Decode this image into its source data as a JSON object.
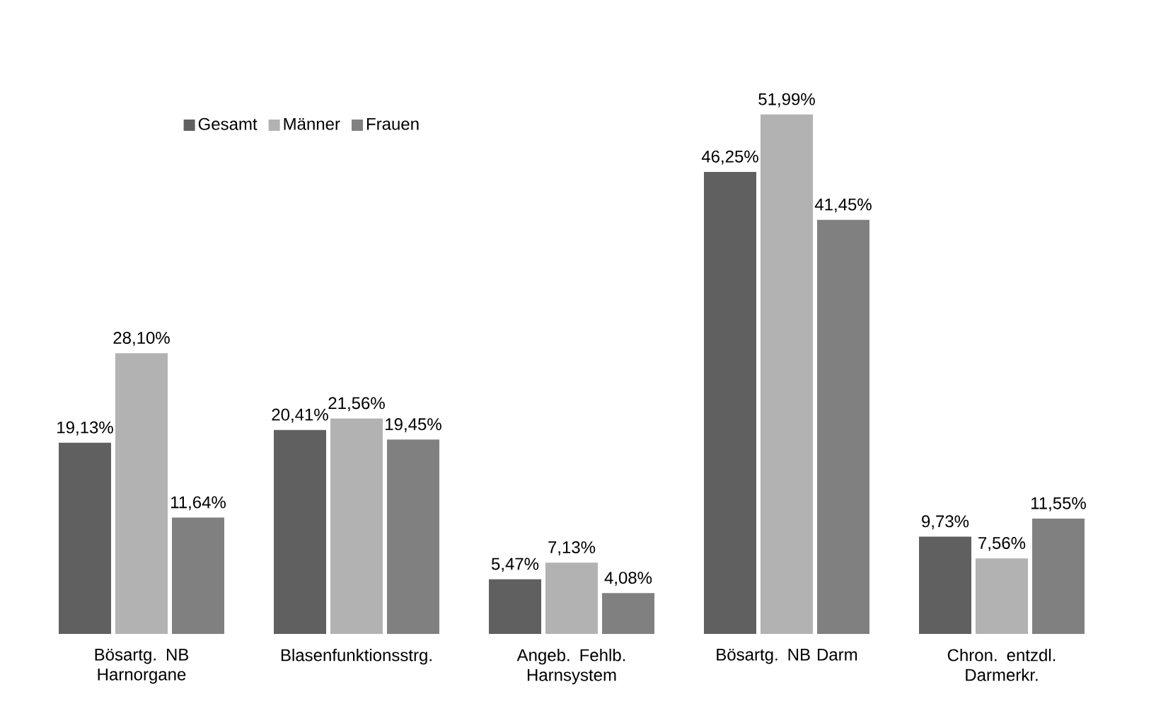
{
  "chart_data": {
    "type": "bar",
    "categories": [
      "Bösartg. NB Harnorgane",
      "Blasenfunktionsstrg.",
      "Angeb. Fehlb. Harnsystem",
      "Bösartg. NB Darm",
      "Chron. entzdl. Darmerkr."
    ],
    "series": [
      {
        "name": "Gesamt",
        "color": "#606060",
        "values": [
          19.13,
          20.41,
          5.47,
          46.25,
          9.73
        ],
        "value_labels": [
          "19,13%",
          "20,41%",
          "5,47%",
          "46,25%",
          "9,73%"
        ]
      },
      {
        "name": "Männer",
        "color": "#b2b2b2",
        "values": [
          28.1,
          21.56,
          7.13,
          51.99,
          7.56
        ],
        "value_labels": [
          "28,10%",
          "21,56%",
          "7,13%",
          "51,99%",
          "7,56%"
        ]
      },
      {
        "name": "Frauen",
        "color": "#808080",
        "values": [
          11.64,
          19.45,
          4.08,
          41.45,
          11.55
        ],
        "value_labels": [
          "11,64%",
          "19,45%",
          "4,08%",
          "41,45%",
          "11,55%"
        ]
      }
    ],
    "legend": "top left"
  }
}
